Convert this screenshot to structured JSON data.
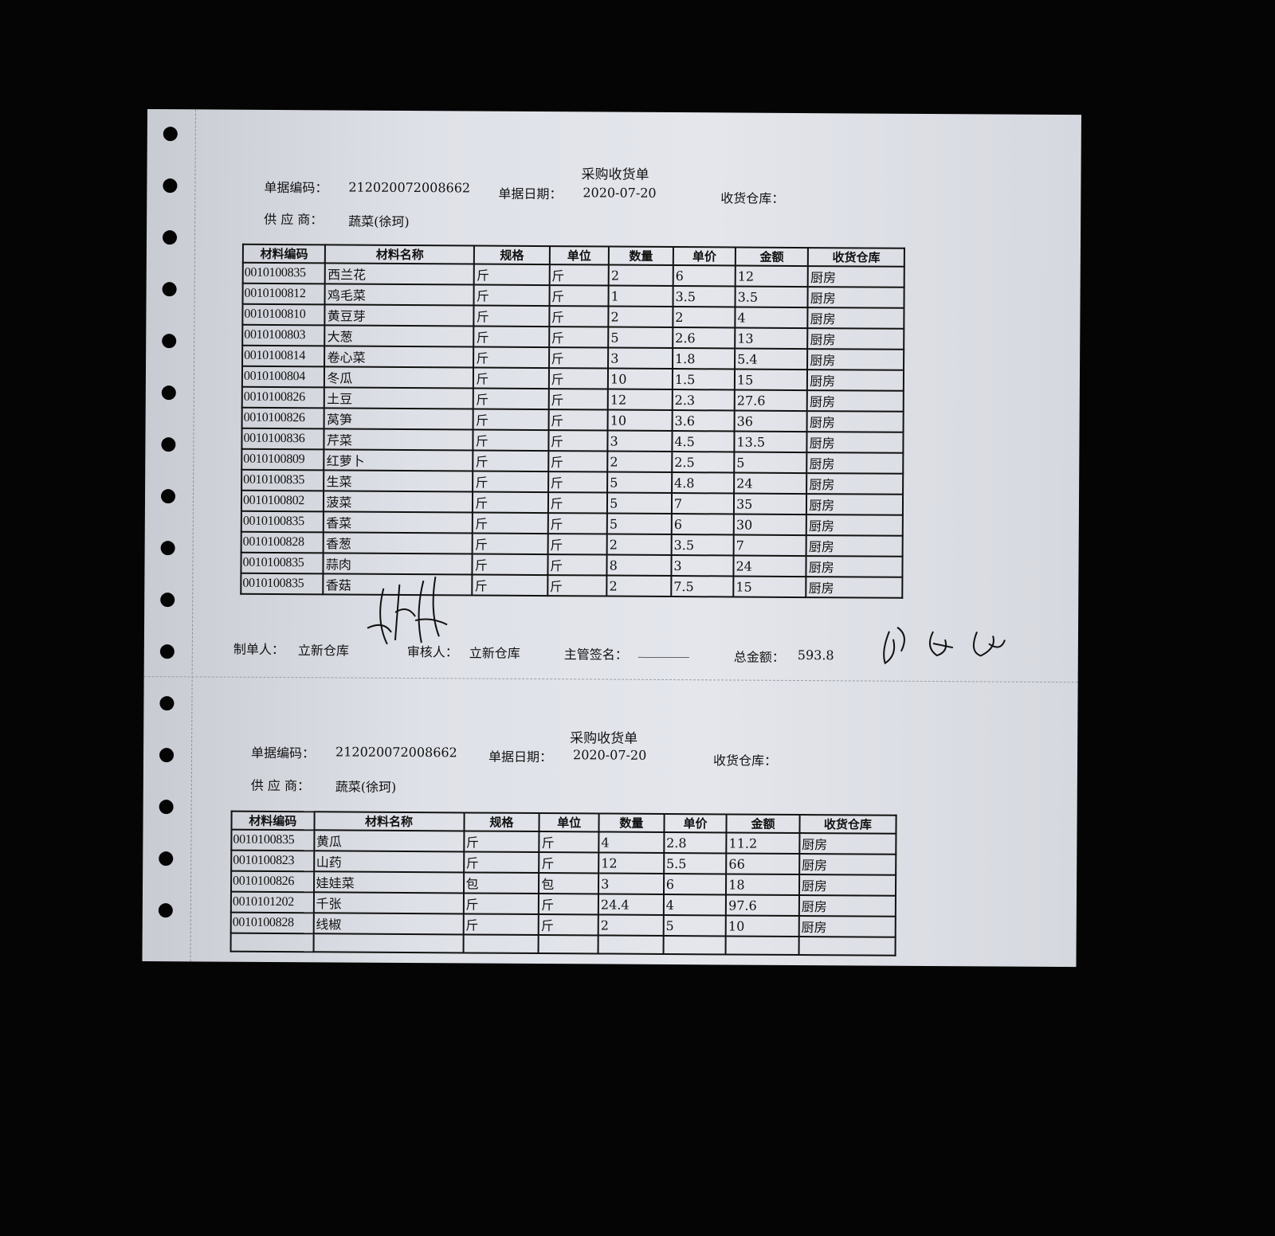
{
  "forms": [
    {
      "title": "采购收货单",
      "doc_no_label": "单据编码：",
      "doc_no": "212020072008662",
      "date_label": "单据日期：",
      "date": "2020-07-20",
      "warehouse_label": "收货仓库：",
      "supplier_label": "供 应 商：",
      "supplier": "蔬菜(徐珂)",
      "columns": [
        "材料编码",
        "材料名称",
        "规格",
        "单位",
        "数量",
        "单价",
        "金额",
        "收货仓库"
      ],
      "rows": [
        [
          "0010100835",
          "西兰花",
          "斤",
          "斤",
          "2",
          "6",
          "12",
          "厨房"
        ],
        [
          "0010100812",
          "鸡毛菜",
          "斤",
          "斤",
          "1",
          "3.5",
          "3.5",
          "厨房"
        ],
        [
          "0010100810",
          "黄豆芽",
          "斤",
          "斤",
          "2",
          "2",
          "4",
          "厨房"
        ],
        [
          "0010100803",
          "大葱",
          "斤",
          "斤",
          "5",
          "2.6",
          "13",
          "厨房"
        ],
        [
          "0010100814",
          "卷心菜",
          "斤",
          "斤",
          "3",
          "1.8",
          "5.4",
          "厨房"
        ],
        [
          "0010100804",
          "冬瓜",
          "斤",
          "斤",
          "10",
          "1.5",
          "15",
          "厨房"
        ],
        [
          "0010100826",
          "土豆",
          "斤",
          "斤",
          "12",
          "2.3",
          "27.6",
          "厨房"
        ],
        [
          "0010100826",
          "莴笋",
          "斤",
          "斤",
          "10",
          "3.6",
          "36",
          "厨房"
        ],
        [
          "0010100836",
          "芹菜",
          "斤",
          "斤",
          "3",
          "4.5",
          "13.5",
          "厨房"
        ],
        [
          "0010100809",
          "红萝卜",
          "斤",
          "斤",
          "2",
          "2.5",
          "5",
          "厨房"
        ],
        [
          "0010100835",
          "生菜",
          "斤",
          "斤",
          "5",
          "4.8",
          "24",
          "厨房"
        ],
        [
          "0010100802",
          "菠菜",
          "斤",
          "斤",
          "5",
          "7",
          "35",
          "厨房"
        ],
        [
          "0010100835",
          "香菜",
          "斤",
          "斤",
          "5",
          "6",
          "30",
          "厨房"
        ],
        [
          "0010100828",
          "香葱",
          "斤",
          "斤",
          "2",
          "3.5",
          "7",
          "厨房"
        ],
        [
          "0010100835",
          "蒜肉",
          "斤",
          "斤",
          "8",
          "3",
          "24",
          "厨房"
        ],
        [
          "0010100835",
          "香菇",
          "斤",
          "斤",
          "2",
          "7.5",
          "15",
          "厨房"
        ]
      ],
      "footer": {
        "maker_label": "制单人：",
        "maker": "立新仓库",
        "reviewer_label": "审核人：",
        "reviewer": "立新仓库",
        "manager_label": "主管签名：",
        "manager_blank": "________",
        "total_label": "总金额：",
        "total": "593.8"
      },
      "signatures": [
        "handwritten signature",
        "handwritten signature"
      ]
    },
    {
      "title": "采购收货单",
      "doc_no_label": "单据编码：",
      "doc_no": "212020072008662",
      "date_label": "单据日期：",
      "date": "2020-07-20",
      "warehouse_label": "收货仓库：",
      "supplier_label": "供 应 商：",
      "supplier": "蔬菜(徐珂)",
      "columns": [
        "材料编码",
        "材料名称",
        "规格",
        "单位",
        "数量",
        "单价",
        "金额",
        "收货仓库"
      ],
      "rows": [
        [
          "0010100835",
          "黄瓜",
          "斤",
          "斤",
          "4",
          "2.8",
          "11.2",
          "厨房"
        ],
        [
          "0010100823",
          "山药",
          "斤",
          "斤",
          "12",
          "5.5",
          "66",
          "厨房"
        ],
        [
          "0010100826",
          "娃娃菜",
          "包",
          "包",
          "3",
          "6",
          "18",
          "厨房"
        ],
        [
          "0010101202",
          "千张",
          "斤",
          "斤",
          "24.4",
          "4",
          "97.6",
          "厨房"
        ],
        [
          "0010100828",
          "线椒",
          "斤",
          "斤",
          "2",
          "5",
          "10",
          "厨房"
        ]
      ]
    }
  ]
}
